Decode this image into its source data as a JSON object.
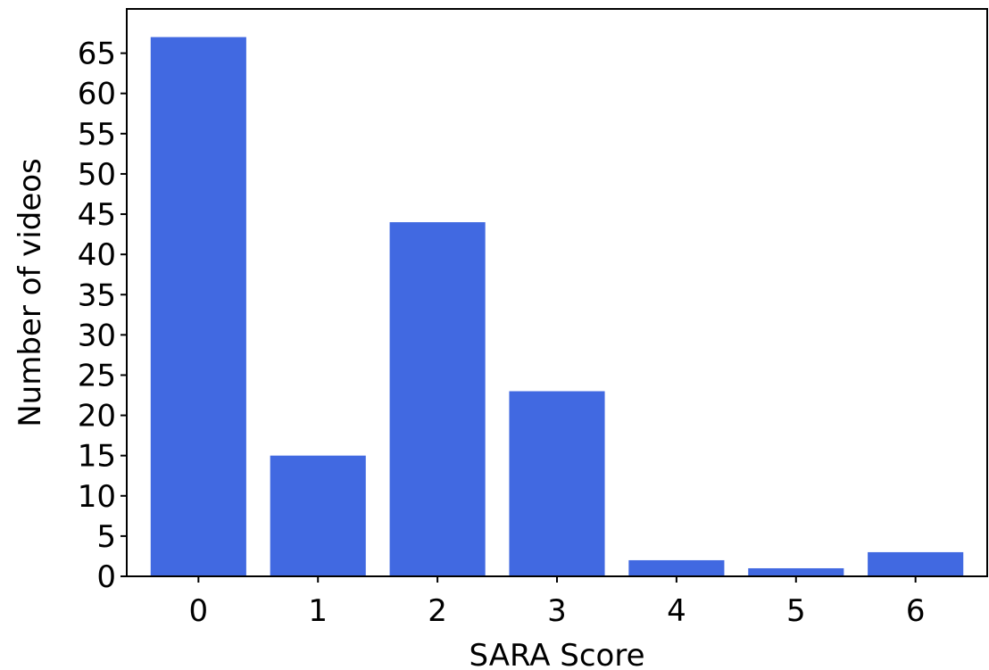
{
  "chart_data": {
    "type": "bar",
    "title": "",
    "xlabel": "SARA Score",
    "ylabel": "Number of videos",
    "categories": [
      "0",
      "1",
      "2",
      "3",
      "4",
      "5",
      "6"
    ],
    "values": [
      67,
      15,
      44,
      23,
      2,
      1,
      3
    ],
    "ylim": [
      0,
      70.5
    ],
    "yticks": [
      0,
      5,
      10,
      15,
      20,
      25,
      30,
      35,
      40,
      45,
      50,
      55,
      60,
      65
    ],
    "bar_color": "#4169E1",
    "grid": false,
    "legend": "none"
  }
}
